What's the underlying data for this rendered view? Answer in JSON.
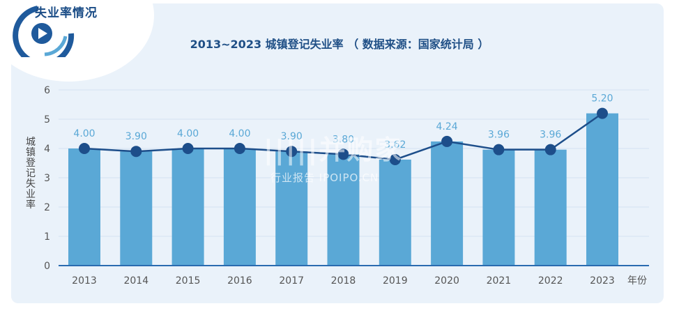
{
  "section_title": "失业率情况",
  "watermark": {
    "main": "|||||并购家",
    "sub": "行业报告 IPOIPO.CN"
  },
  "chart_data": {
    "type": "bar",
    "title": "2013~2023 城镇登记失业率 （ 数据来源：国家统计局 ）",
    "xlabel": "年份",
    "ylabel": "城镇登记失业率",
    "categories": [
      "2013",
      "2014",
      "2015",
      "2016",
      "2017",
      "2018",
      "2019",
      "2020",
      "2021",
      "2022",
      "2023"
    ],
    "series": [
      {
        "type": "bar",
        "values": [
          4.0,
          3.9,
          4.0,
          4.0,
          3.9,
          3.8,
          3.62,
          4.24,
          3.96,
          3.96,
          5.2
        ]
      },
      {
        "type": "line",
        "values": [
          4.0,
          3.9,
          4.0,
          4.0,
          3.9,
          3.8,
          3.62,
          4.24,
          3.96,
          3.96,
          5.2
        ]
      }
    ],
    "data_labels": [
      "4.00",
      "3.90",
      "4.00",
      "4.00",
      "3.90",
      "3.80",
      "3.62",
      "4.24",
      "3.96",
      "3.96",
      "5.20"
    ],
    "yticks": [
      "0",
      "1",
      "2",
      "3",
      "4",
      "5",
      "6"
    ],
    "ylim": [
      0,
      6
    ],
    "grid": true,
    "colors": {
      "bar": "#5aa8d6",
      "line": "#1d4e8a",
      "label": "#5aa8d6",
      "title": "#1f4f86"
    }
  }
}
